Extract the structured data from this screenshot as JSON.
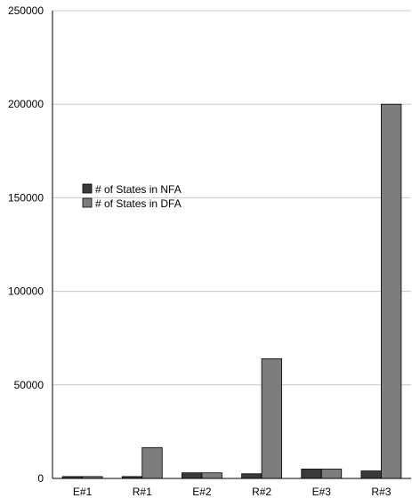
{
  "chart_data": {
    "type": "bar",
    "categories": [
      "E#1",
      "R#1",
      "E#2",
      "R#2",
      "E#3",
      "R#3"
    ],
    "series": [
      {
        "name": "# of States in NFA",
        "color": "#3a3a3a",
        "values": [
          1000,
          1000,
          3000,
          2500,
          5000,
          4000
        ]
      },
      {
        "name": "# of States in DFA",
        "color": "#7d7d7d",
        "values": [
          1000,
          16500,
          3000,
          64000,
          5000,
          200000
        ]
      }
    ],
    "ylim": [
      0,
      250000
    ],
    "yticks": [
      0,
      50000,
      100000,
      150000,
      200000,
      250000
    ],
    "grid": true,
    "legend_position": "upper-left (inside plot)",
    "title": "",
    "xlabel": "",
    "ylabel": ""
  }
}
